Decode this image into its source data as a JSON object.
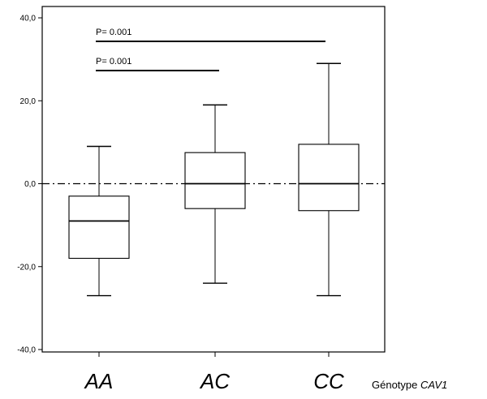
{
  "chart_data": {
    "type": "box",
    "ylim": [
      -40,
      40
    ],
    "yticks": [
      {
        "value": 40,
        "label": "40,0"
      },
      {
        "value": 20,
        "label": "20,0"
      },
      {
        "value": 0,
        "label": "0,0"
      },
      {
        "value": -20,
        "label": "-20,0"
      },
      {
        "value": -40,
        "label": "-40,0"
      }
    ],
    "categories": [
      "AA",
      "AC",
      "CC"
    ],
    "xlabel_prefix": "Génotype ",
    "xlabel_gene": "CAV1",
    "reference_line": 0,
    "boxes": [
      {
        "category": "AA",
        "min": -27,
        "q1": -18,
        "median": -9,
        "q3": -3,
        "max": 9
      },
      {
        "category": "AC",
        "min": -24,
        "q1": -6,
        "median": 0,
        "q3": 7.5,
        "max": 19
      },
      {
        "category": "CC",
        "min": -27,
        "q1": -6.5,
        "median": 0,
        "q3": 9.5,
        "max": 29
      }
    ],
    "annotations": [
      {
        "text": "P= 0.001",
        "from": "AA",
        "to": "CC"
      },
      {
        "text": "P= 0.001",
        "from": "AA",
        "to": "AC"
      }
    ]
  }
}
